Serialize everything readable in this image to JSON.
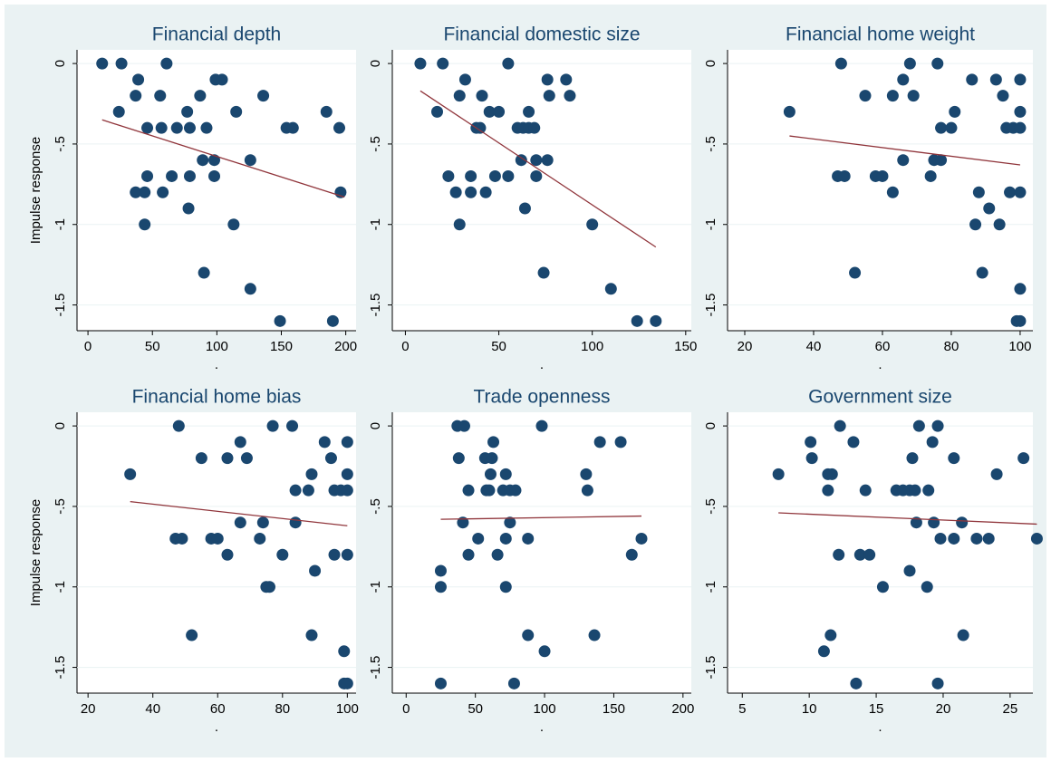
{
  "chart_data": [
    {
      "type": "scatter",
      "title": "Financial depth",
      "ylabel": "Impulse response",
      "xlabel": ".",
      "x": [
        11,
        26,
        61,
        24,
        39,
        37,
        56,
        46,
        57,
        69,
        77,
        79,
        87,
        92,
        99,
        104,
        115,
        136,
        154,
        159,
        185,
        195,
        46,
        65,
        79,
        89,
        98,
        98,
        126,
        37,
        44,
        58,
        196,
        78,
        44,
        113,
        90,
        126,
        149,
        190
      ],
      "values": [
        0,
        0,
        0,
        -0.3,
        -0.1,
        -0.2,
        -0.2,
        -0.4,
        -0.4,
        -0.4,
        -0.3,
        -0.4,
        -0.2,
        -0.4,
        -0.1,
        -0.1,
        -0.3,
        -0.2,
        -0.4,
        -0.4,
        -0.3,
        -0.4,
        -0.7,
        -0.7,
        -0.7,
        -0.6,
        -0.6,
        -0.7,
        -0.6,
        -0.8,
        -0.8,
        -0.8,
        -0.8,
        -0.9,
        -1,
        -1,
        -1.3,
        -1.4,
        -1.6,
        -1.6
      ],
      "color": "#1a476f",
      "fit_line": {
        "x": [
          11,
          199
        ],
        "values": [
          -0.35,
          -0.83
        ],
        "color": "#90353b"
      },
      "xlim": [
        -8.5,
        208
      ],
      "ylim": [
        -1.66,
        0.085
      ],
      "xticks": [
        0,
        50,
        100,
        150,
        200
      ],
      "yticks": [
        0,
        {
          "value": -0.5,
          "label": "-.5"
        },
        -1,
        -1.5
      ],
      "grid": true
    },
    {
      "type": "scatter",
      "title": "Financial domestic size",
      "xlabel": ".",
      "x": [
        8,
        20,
        55,
        17,
        32,
        29,
        41,
        45,
        50,
        38,
        40,
        60,
        63,
        66,
        69,
        66,
        76,
        86,
        77,
        88,
        23,
        35,
        48,
        55,
        62,
        70,
        76,
        70,
        27,
        35,
        43,
        64,
        29,
        100,
        74,
        110,
        124,
        134
      ],
      "values": [
        0,
        0,
        0,
        -0.3,
        -0.1,
        -0.2,
        -0.2,
        -0.3,
        -0.3,
        -0.4,
        -0.4,
        -0.4,
        -0.4,
        -0.4,
        -0.4,
        -0.3,
        -0.1,
        -0.1,
        -0.2,
        -0.2,
        -0.7,
        -0.7,
        -0.7,
        -0.7,
        -0.6,
        -0.6,
        -0.6,
        -0.7,
        -0.8,
        -0.8,
        -0.8,
        -0.9,
        -1,
        -1,
        -1.3,
        -1.4,
        -1.6,
        -1.6
      ],
      "color": "#1a476f",
      "fit_line": {
        "x": [
          8,
          134
        ],
        "values": [
          -0.17,
          -1.14
        ],
        "color": "#90353b"
      },
      "xlim": [
        -7,
        153
      ],
      "ylim": [
        -1.66,
        0.085
      ],
      "xticks": [
        0,
        50,
        100,
        150
      ],
      "yticks": [
        0,
        {
          "value": -0.5,
          "label": "-.5"
        },
        -1,
        -1.5
      ],
      "grid": true
    },
    {
      "type": "scatter",
      "title": "Financial home weight",
      "xlabel": ".",
      "x": [
        33,
        48,
        68,
        76,
        55,
        66,
        63,
        69,
        77,
        80,
        81,
        86,
        93,
        95,
        100,
        96,
        98,
        100,
        100,
        47,
        49,
        58,
        60,
        66,
        75,
        77,
        74,
        63,
        88,
        97,
        100,
        91,
        87,
        94,
        52,
        89,
        100,
        99,
        100
      ],
      "values": [
        -0.3,
        0,
        0,
        0,
        -0.2,
        -0.1,
        -0.2,
        -0.2,
        -0.4,
        -0.4,
        -0.3,
        -0.1,
        -0.1,
        -0.2,
        -0.1,
        -0.4,
        -0.4,
        -0.4,
        -0.3,
        -0.7,
        -0.7,
        -0.7,
        -0.7,
        -0.6,
        -0.6,
        -0.6,
        -0.7,
        -0.8,
        -0.8,
        -0.8,
        -0.8,
        -0.9,
        -1,
        -1,
        -1.3,
        -1.3,
        -1.4,
        -1.6,
        -1.6
      ],
      "color": "#1a476f",
      "fit_line": {
        "x": [
          33,
          100
        ],
        "values": [
          -0.45,
          -0.63
        ],
        "color": "#90353b"
      },
      "xlim": [
        15,
        103.7
      ],
      "ylim": [
        -1.66,
        0.085
      ],
      "xticks": [
        20,
        40,
        60,
        80,
        100
      ],
      "yticks": [
        0,
        {
          "value": -0.5,
          "label": "-.5"
        },
        -1,
        -1.5
      ],
      "grid": true
    },
    {
      "type": "scatter",
      "title": "Financial home bias",
      "ylabel": "Impulse response",
      "xlabel": ".",
      "x": [
        33,
        48,
        77,
        83,
        55,
        67,
        63,
        69,
        84,
        88,
        89,
        93,
        95,
        100,
        96,
        98,
        100,
        100,
        47,
        49,
        58,
        60,
        67,
        74,
        84,
        73,
        63,
        80,
        96,
        100,
        90,
        75,
        76,
        52,
        89,
        99,
        99,
        100
      ],
      "values": [
        -0.3,
        0,
        0,
        0,
        -0.2,
        -0.1,
        -0.2,
        -0.2,
        -0.4,
        -0.4,
        -0.3,
        -0.1,
        -0.2,
        -0.1,
        -0.4,
        -0.4,
        -0.4,
        -0.3,
        -0.7,
        -0.7,
        -0.7,
        -0.7,
        -0.6,
        -0.6,
        -0.6,
        -0.7,
        -0.8,
        -0.8,
        -0.8,
        -0.8,
        -0.9,
        -1,
        -1,
        -1.3,
        -1.3,
        -1.4,
        -1.6,
        -1.6
      ],
      "color": "#1a476f",
      "fit_line": {
        "x": [
          33,
          100
        ],
        "values": [
          -0.47,
          -0.62
        ],
        "color": "#90353b"
      },
      "xlim": [
        16.6,
        102.7
      ],
      "ylim": [
        -1.66,
        0.085
      ],
      "xticks": [
        20,
        40,
        60,
        80,
        100
      ],
      "yticks": [
        0,
        {
          "value": -0.5,
          "label": "-.5"
        },
        -1,
        -1.5
      ],
      "grid": true
    },
    {
      "type": "scatter",
      "title": "Trade openness",
      "xlabel": ".",
      "x": [
        37,
        42,
        98,
        38,
        57,
        62,
        63,
        61,
        72,
        130,
        140,
        155,
        45,
        58,
        60,
        70,
        75,
        79,
        131,
        41,
        75,
        52,
        72,
        88,
        170,
        45,
        66,
        163,
        25,
        25,
        72,
        88,
        136,
        100,
        25,
        78
      ],
      "values": [
        0,
        0,
        0,
        -0.2,
        -0.2,
        -0.2,
        -0.1,
        -0.3,
        -0.3,
        -0.3,
        -0.1,
        -0.1,
        -0.4,
        -0.4,
        -0.4,
        -0.4,
        -0.4,
        -0.4,
        -0.4,
        -0.6,
        -0.6,
        -0.7,
        -0.7,
        -0.7,
        -0.7,
        -0.8,
        -0.8,
        -0.8,
        -0.9,
        -1,
        -1,
        -1.3,
        -1.3,
        -1.4,
        -1.6,
        -1.6
      ],
      "color": "#1a476f",
      "fit_line": {
        "x": [
          25,
          170
        ],
        "values": [
          -0.58,
          -0.56
        ],
        "color": "#90353b"
      },
      "xlim": [
        -10,
        206
      ],
      "ylim": [
        -1.66,
        0.085
      ],
      "xticks": [
        0,
        50,
        100,
        150,
        200
      ],
      "yticks": [
        0,
        {
          "value": -0.5,
          "label": "-.5"
        },
        -1,
        -1.5
      ],
      "grid": true
    },
    {
      "type": "scatter",
      "title": "Government size",
      "xlabel": ".",
      "x": [
        12.3,
        18.2,
        19.6,
        10.1,
        13.3,
        19.2,
        10.2,
        17.7,
        20.8,
        26,
        7.7,
        11.4,
        11.7,
        24,
        11.4,
        14.2,
        16.5,
        17,
        17.5,
        17.9,
        18.9,
        18,
        19.3,
        21.4,
        19.8,
        20.8,
        22.5,
        23.4,
        27,
        12.2,
        13.8,
        14.5,
        17.5,
        15.5,
        18.8,
        11.6,
        21.5,
        11.1,
        13.5,
        19.6
      ],
      "values": [
        0,
        0,
        0,
        -0.1,
        -0.1,
        -0.1,
        -0.2,
        -0.2,
        -0.2,
        -0.2,
        -0.3,
        -0.3,
        -0.3,
        -0.3,
        -0.4,
        -0.4,
        -0.4,
        -0.4,
        -0.4,
        -0.4,
        -0.4,
        -0.6,
        -0.6,
        -0.6,
        -0.7,
        -0.7,
        -0.7,
        -0.7,
        -0.7,
        -0.8,
        -0.8,
        -0.8,
        -0.9,
        -1,
        -1,
        -1.3,
        -1.3,
        -1.4,
        -1.6,
        -1.6
      ],
      "color": "#1a476f",
      "fit_line": {
        "x": [
          7.7,
          27
        ],
        "values": [
          -0.54,
          -0.61
        ],
        "color": "#90353b"
      },
      "xlim": [
        3.9,
        26.7
      ],
      "ylim": [
        -1.66,
        0.085
      ],
      "xticks": [
        5,
        10,
        15,
        20,
        25
      ],
      "yticks": [
        0,
        {
          "value": -0.5,
          "label": "-.5"
        },
        -1,
        -1.5
      ],
      "grid": true
    }
  ]
}
